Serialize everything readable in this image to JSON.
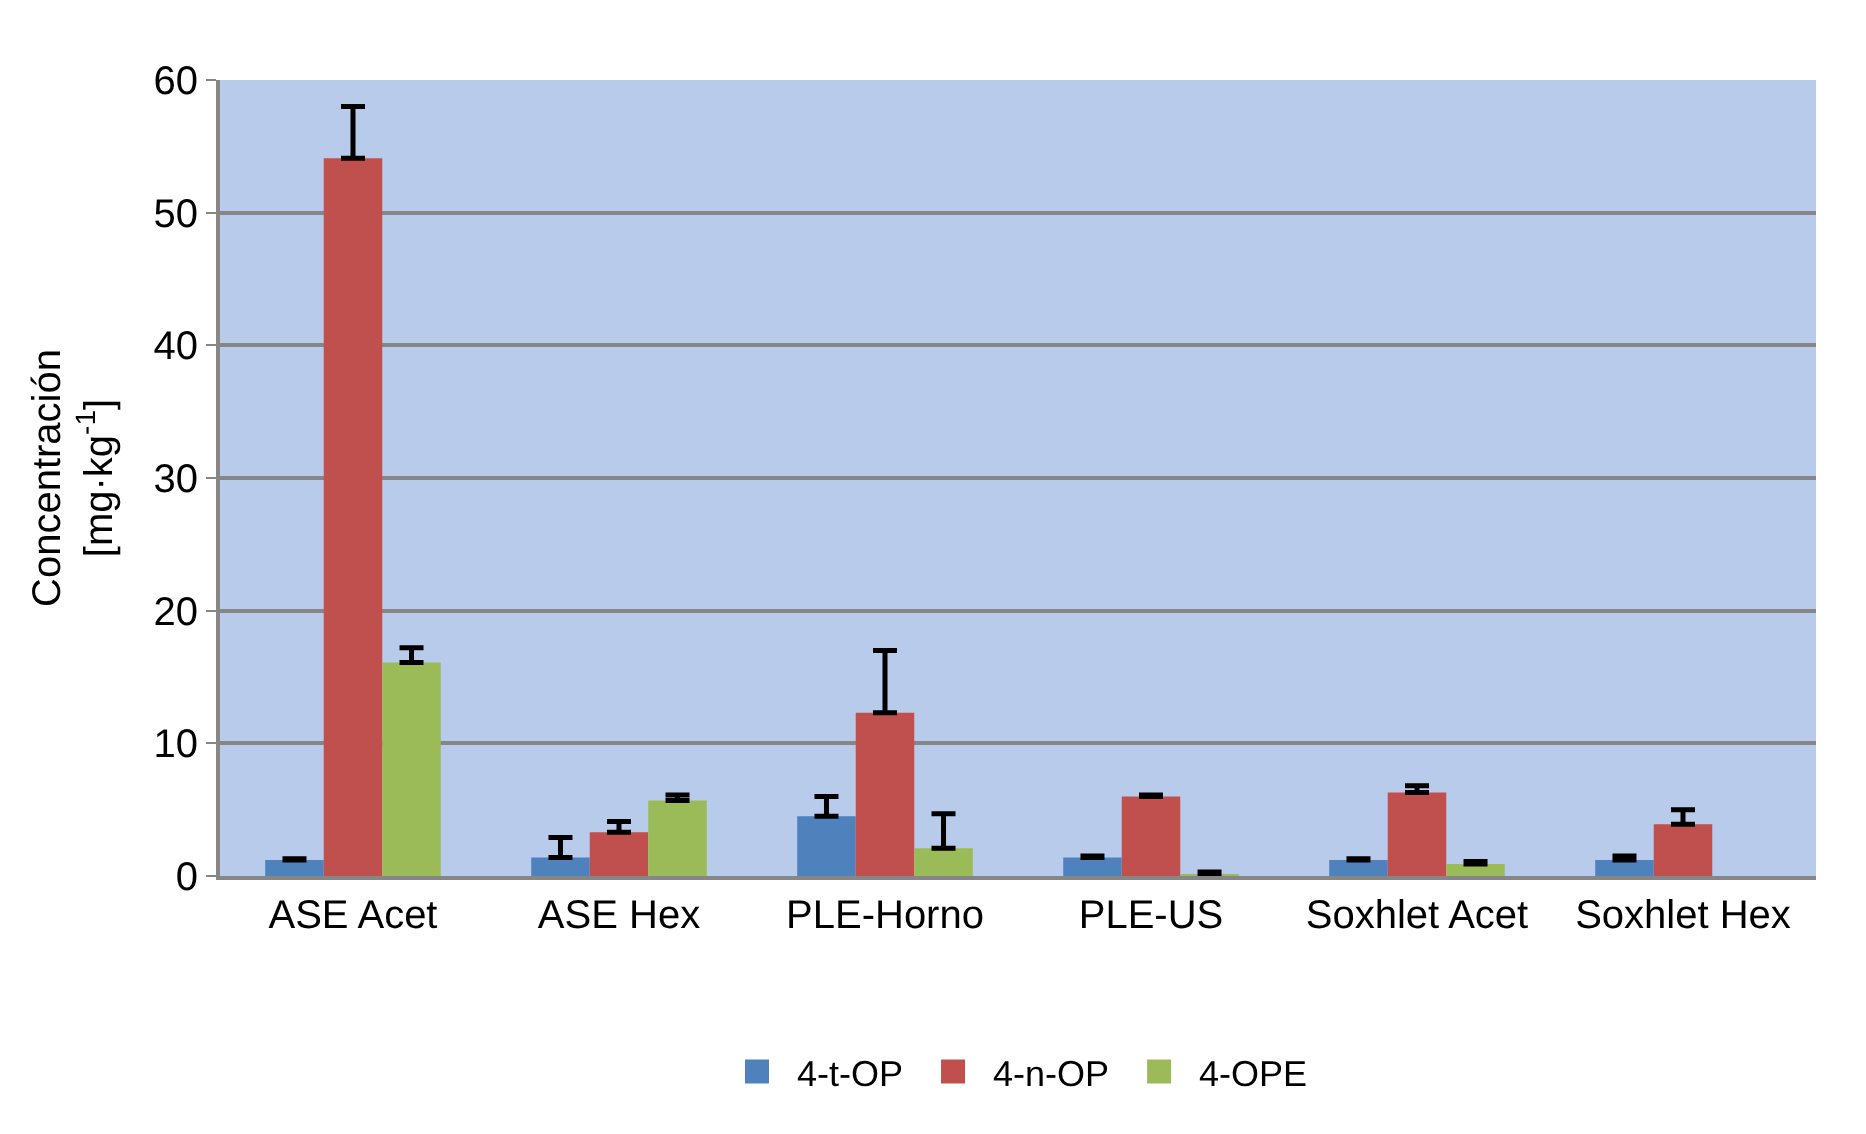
{
  "chart_data": {
    "type": "bar",
    "ylabel": "Concentración [mg·kg$^{-1}$]",
    "categories": [
      "ASE Acet",
      "ASE Hex",
      "PLE-Horno",
      "PLE-US",
      "Soxhlet Acet",
      "Soxhlet Hex"
    ],
    "series": [
      {
        "name": "4-t-OP",
        "color": "#4f81bd",
        "values": [
          1.2,
          1.4,
          4.5,
          1.4,
          1.2,
          1.2
        ],
        "errors": [
          [
            1.2,
            1.3
          ],
          [
            1.4,
            2.9
          ],
          [
            4.5,
            6.0
          ],
          [
            1.4,
            1.5
          ],
          [
            1.2,
            1.3
          ],
          [
            1.2,
            1.5
          ]
        ]
      },
      {
        "name": "4-n-OP",
        "color": "#c0504d",
        "values": [
          54.1,
          3.3,
          12.3,
          6.0,
          6.3,
          3.9
        ],
        "errors": [
          [
            54.1,
            58.0
          ],
          [
            3.3,
            4.1
          ],
          [
            12.3,
            17.0
          ],
          [
            6.0,
            6.1
          ],
          [
            6.3,
            6.8
          ],
          [
            3.9,
            5.0
          ]
        ]
      },
      {
        "name": "4-OPE",
        "color": "#9bbb59",
        "values": [
          16.1,
          5.7,
          2.1,
          0.1,
          0.9,
          null
        ],
        "errors": [
          [
            16.1,
            17.2
          ],
          [
            5.7,
            6.1
          ],
          [
            2.1,
            4.7
          ],
          [
            0.1,
            0.3
          ],
          [
            0.9,
            1.1
          ],
          null
        ]
      }
    ],
    "ylim": [
      0,
      60
    ],
    "yticks": [
      0,
      10,
      20,
      30,
      40,
      50,
      60
    ],
    "grid": "y",
    "legend": "bottom"
  }
}
